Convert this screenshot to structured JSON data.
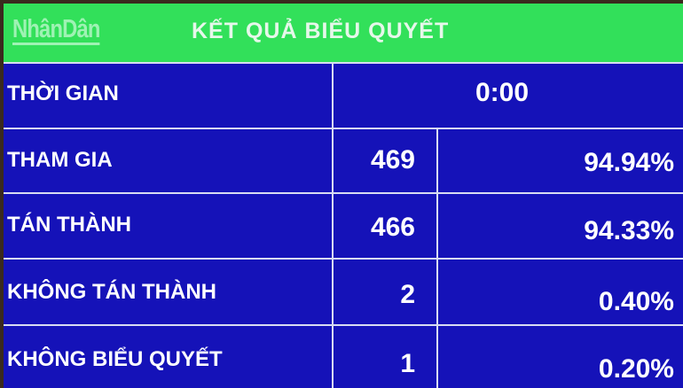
{
  "logo": "NhânDân",
  "title": "KẾT QUẢ BIỂU QUYẾT",
  "time": {
    "label": "THỜI GIAN",
    "value": "0:00"
  },
  "rows": [
    {
      "label": "THAM GIA",
      "count": "469",
      "percent": "94.94%"
    },
    {
      "label": "TÁN THÀNH",
      "count": "466",
      "percent": "94.33%"
    },
    {
      "label": "KHÔNG TÁN THÀNH",
      "count": "2",
      "percent": "0.40%"
    },
    {
      "label": "KHÔNG BIỂU QUYẾT",
      "count": "1",
      "percent": "0.20%"
    }
  ],
  "colors": {
    "header": "#32e05a",
    "board": "#1512b8",
    "text": "#ffffff"
  }
}
